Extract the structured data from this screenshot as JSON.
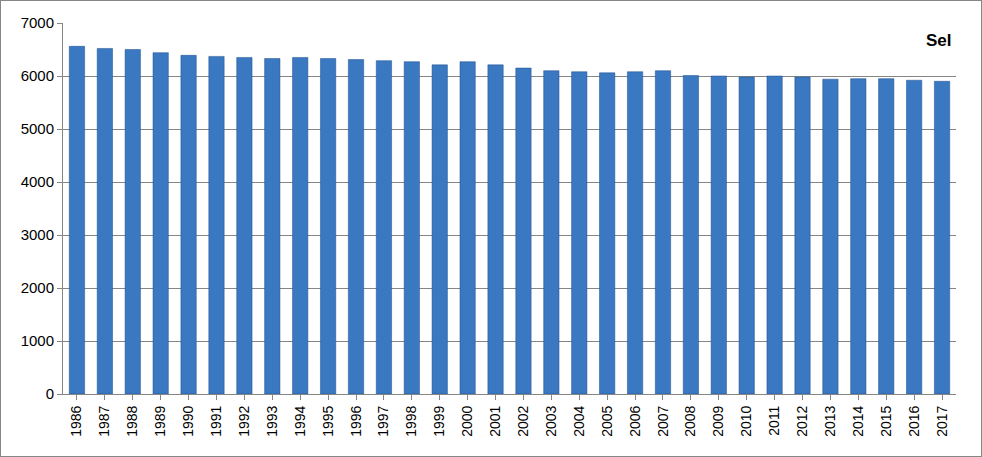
{
  "chart_data": {
    "type": "bar",
    "title": "Sel",
    "categories": [
      "1986",
      "1987",
      "1988",
      "1989",
      "1990",
      "1991",
      "1992",
      "1993",
      "1994",
      "1995",
      "1996",
      "1997",
      "1998",
      "1999",
      "2000",
      "2001",
      "2002",
      "2003",
      "2004",
      "2005",
      "2006",
      "2007",
      "2008",
      "2009",
      "2010",
      "2011",
      "2012",
      "2013",
      "2014",
      "2015",
      "2016",
      "2017"
    ],
    "values": [
      6560,
      6520,
      6500,
      6440,
      6390,
      6370,
      6350,
      6330,
      6350,
      6330,
      6310,
      6290,
      6270,
      6210,
      6270,
      6210,
      6150,
      6100,
      6080,
      6060,
      6080,
      6100,
      6010,
      6000,
      5980,
      6000,
      5980,
      5940,
      5950,
      5950,
      5920,
      5900
    ],
    "color": "#3a78c2",
    "ylim": [
      0,
      7000
    ],
    "yticks": [
      0,
      1000,
      2000,
      3000,
      4000,
      5000,
      6000,
      7000
    ],
    "grid": true
  }
}
